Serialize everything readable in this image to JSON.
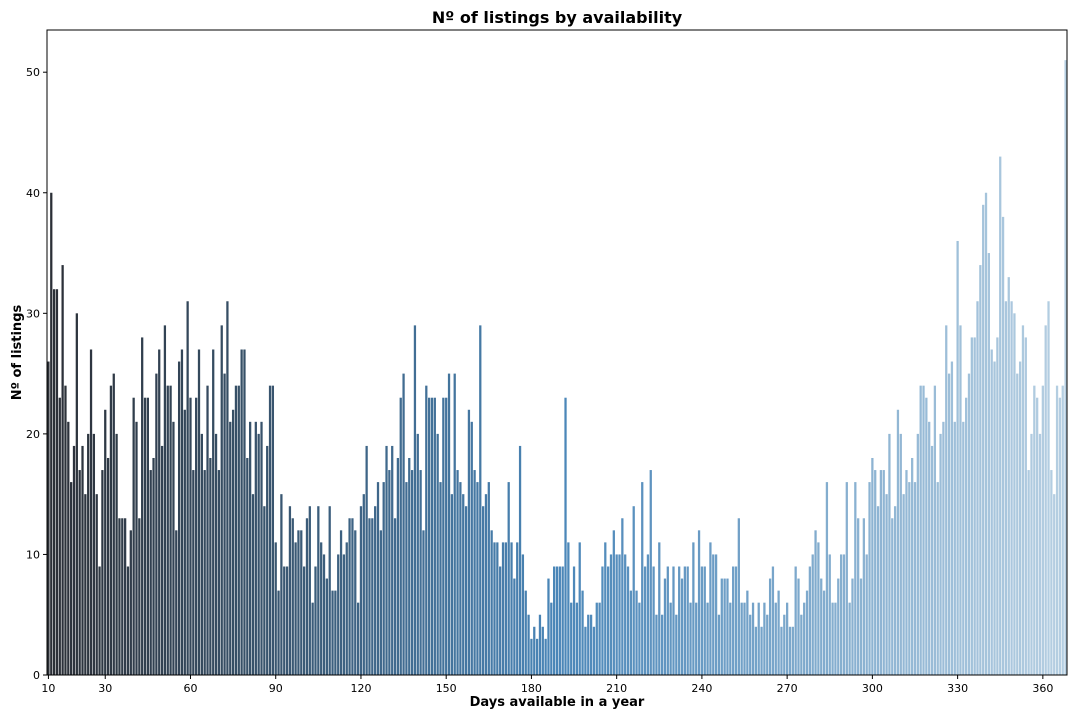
{
  "chart_data": {
    "type": "bar",
    "title": "Nº of listings by availability",
    "xlabel": "Days available in a year",
    "ylabel": "Nº of listings",
    "x_start": 10,
    "x_end": 365,
    "x_ticks": [
      10,
      30,
      60,
      90,
      120,
      150,
      180,
      210,
      240,
      270,
      300,
      330,
      360
    ],
    "y_ticks": [
      0,
      10,
      20,
      30,
      40,
      50
    ],
    "ylim": [
      0,
      53.5
    ],
    "grid": false,
    "palette": "dark-to-light blue gradient",
    "color_start": "#2b2f36",
    "color_mid": "#4a86b8",
    "color_end": "#b6cfe2",
    "values": [
      26,
      40,
      32,
      32,
      23,
      34,
      24,
      21,
      16,
      19,
      30,
      17,
      19,
      15,
      20,
      27,
      20,
      15,
      9,
      17,
      22,
      18,
      24,
      25,
      20,
      13,
      13,
      13,
      9,
      12,
      23,
      21,
      13,
      28,
      23,
      23,
      17,
      18,
      25,
      27,
      19,
      29,
      24,
      24,
      21,
      12,
      26,
      27,
      22,
      31,
      23,
      17,
      23,
      27,
      20,
      17,
      24,
      18,
      27,
      20,
      17,
      29,
      25,
      31,
      21,
      22,
      24,
      24,
      27,
      27,
      18,
      21,
      15,
      21,
      20,
      21,
      14,
      19,
      24,
      24,
      11,
      7,
      15,
      9,
      9,
      14,
      13,
      11,
      12,
      12,
      9,
      13,
      14,
      6,
      9,
      14,
      11,
      10,
      8,
      14,
      7,
      7,
      10,
      12,
      10,
      11,
      13,
      13,
      12,
      6,
      14,
      15,
      19,
      13,
      13,
      14,
      16,
      12,
      16,
      19,
      17,
      19,
      13,
      18,
      23,
      25,
      16,
      18,
      17,
      29,
      20,
      17,
      12,
      24,
      23,
      23,
      23,
      20,
      16,
      23,
      23,
      25,
      15,
      25,
      17,
      16,
      15,
      14,
      22,
      21,
      17,
      16,
      29,
      14,
      15,
      16,
      12,
      11,
      11,
      9,
      11,
      11,
      16,
      11,
      8,
      11,
      19,
      10,
      7,
      5,
      3,
      4,
      3,
      5,
      4,
      3,
      8,
      6,
      9,
      9,
      9,
      9,
      23,
      11,
      6,
      9,
      6,
      11,
      7,
      4,
      5,
      5,
      4,
      6,
      6,
      9,
      11,
      9,
      10,
      12,
      10,
      10,
      13,
      10,
      9,
      7,
      14,
      7,
      6,
      16,
      9,
      10,
      17,
      9,
      5,
      11,
      5,
      8,
      9,
      6,
      9,
      5,
      9,
      8,
      9,
      9,
      6,
      11,
      6,
      12,
      9,
      9,
      6,
      11,
      10,
      10,
      5,
      8,
      8,
      8,
      6,
      9,
      9,
      13,
      6,
      6,
      7,
      5,
      6,
      4,
      6,
      4,
      6,
      5,
      8,
      9,
      6,
      7,
      4,
      5,
      6,
      4,
      4,
      9,
      8,
      5,
      6,
      7,
      9,
      10,
      12,
      11,
      8,
      7,
      16,
      10,
      6,
      6,
      8,
      10,
      10,
      16,
      6,
      8,
      16,
      13,
      8,
      13,
      10,
      16,
      18,
      17,
      14,
      17,
      17,
      15,
      20,
      13,
      14,
      22,
      20,
      15,
      17,
      16,
      18,
      16,
      20,
      24,
      24,
      23,
      21,
      19,
      24,
      16,
      20,
      21,
      29,
      25,
      26,
      21,
      36,
      29,
      21,
      23,
      25,
      28,
      28,
      31,
      34,
      39,
      40,
      35,
      27,
      26,
      28,
      43,
      38,
      31,
      33,
      31,
      30,
      25,
      26,
      29,
      28,
      17,
      20,
      24,
      23,
      20,
      24,
      29,
      31,
      17,
      15,
      24,
      23,
      24,
      51
    ]
  }
}
